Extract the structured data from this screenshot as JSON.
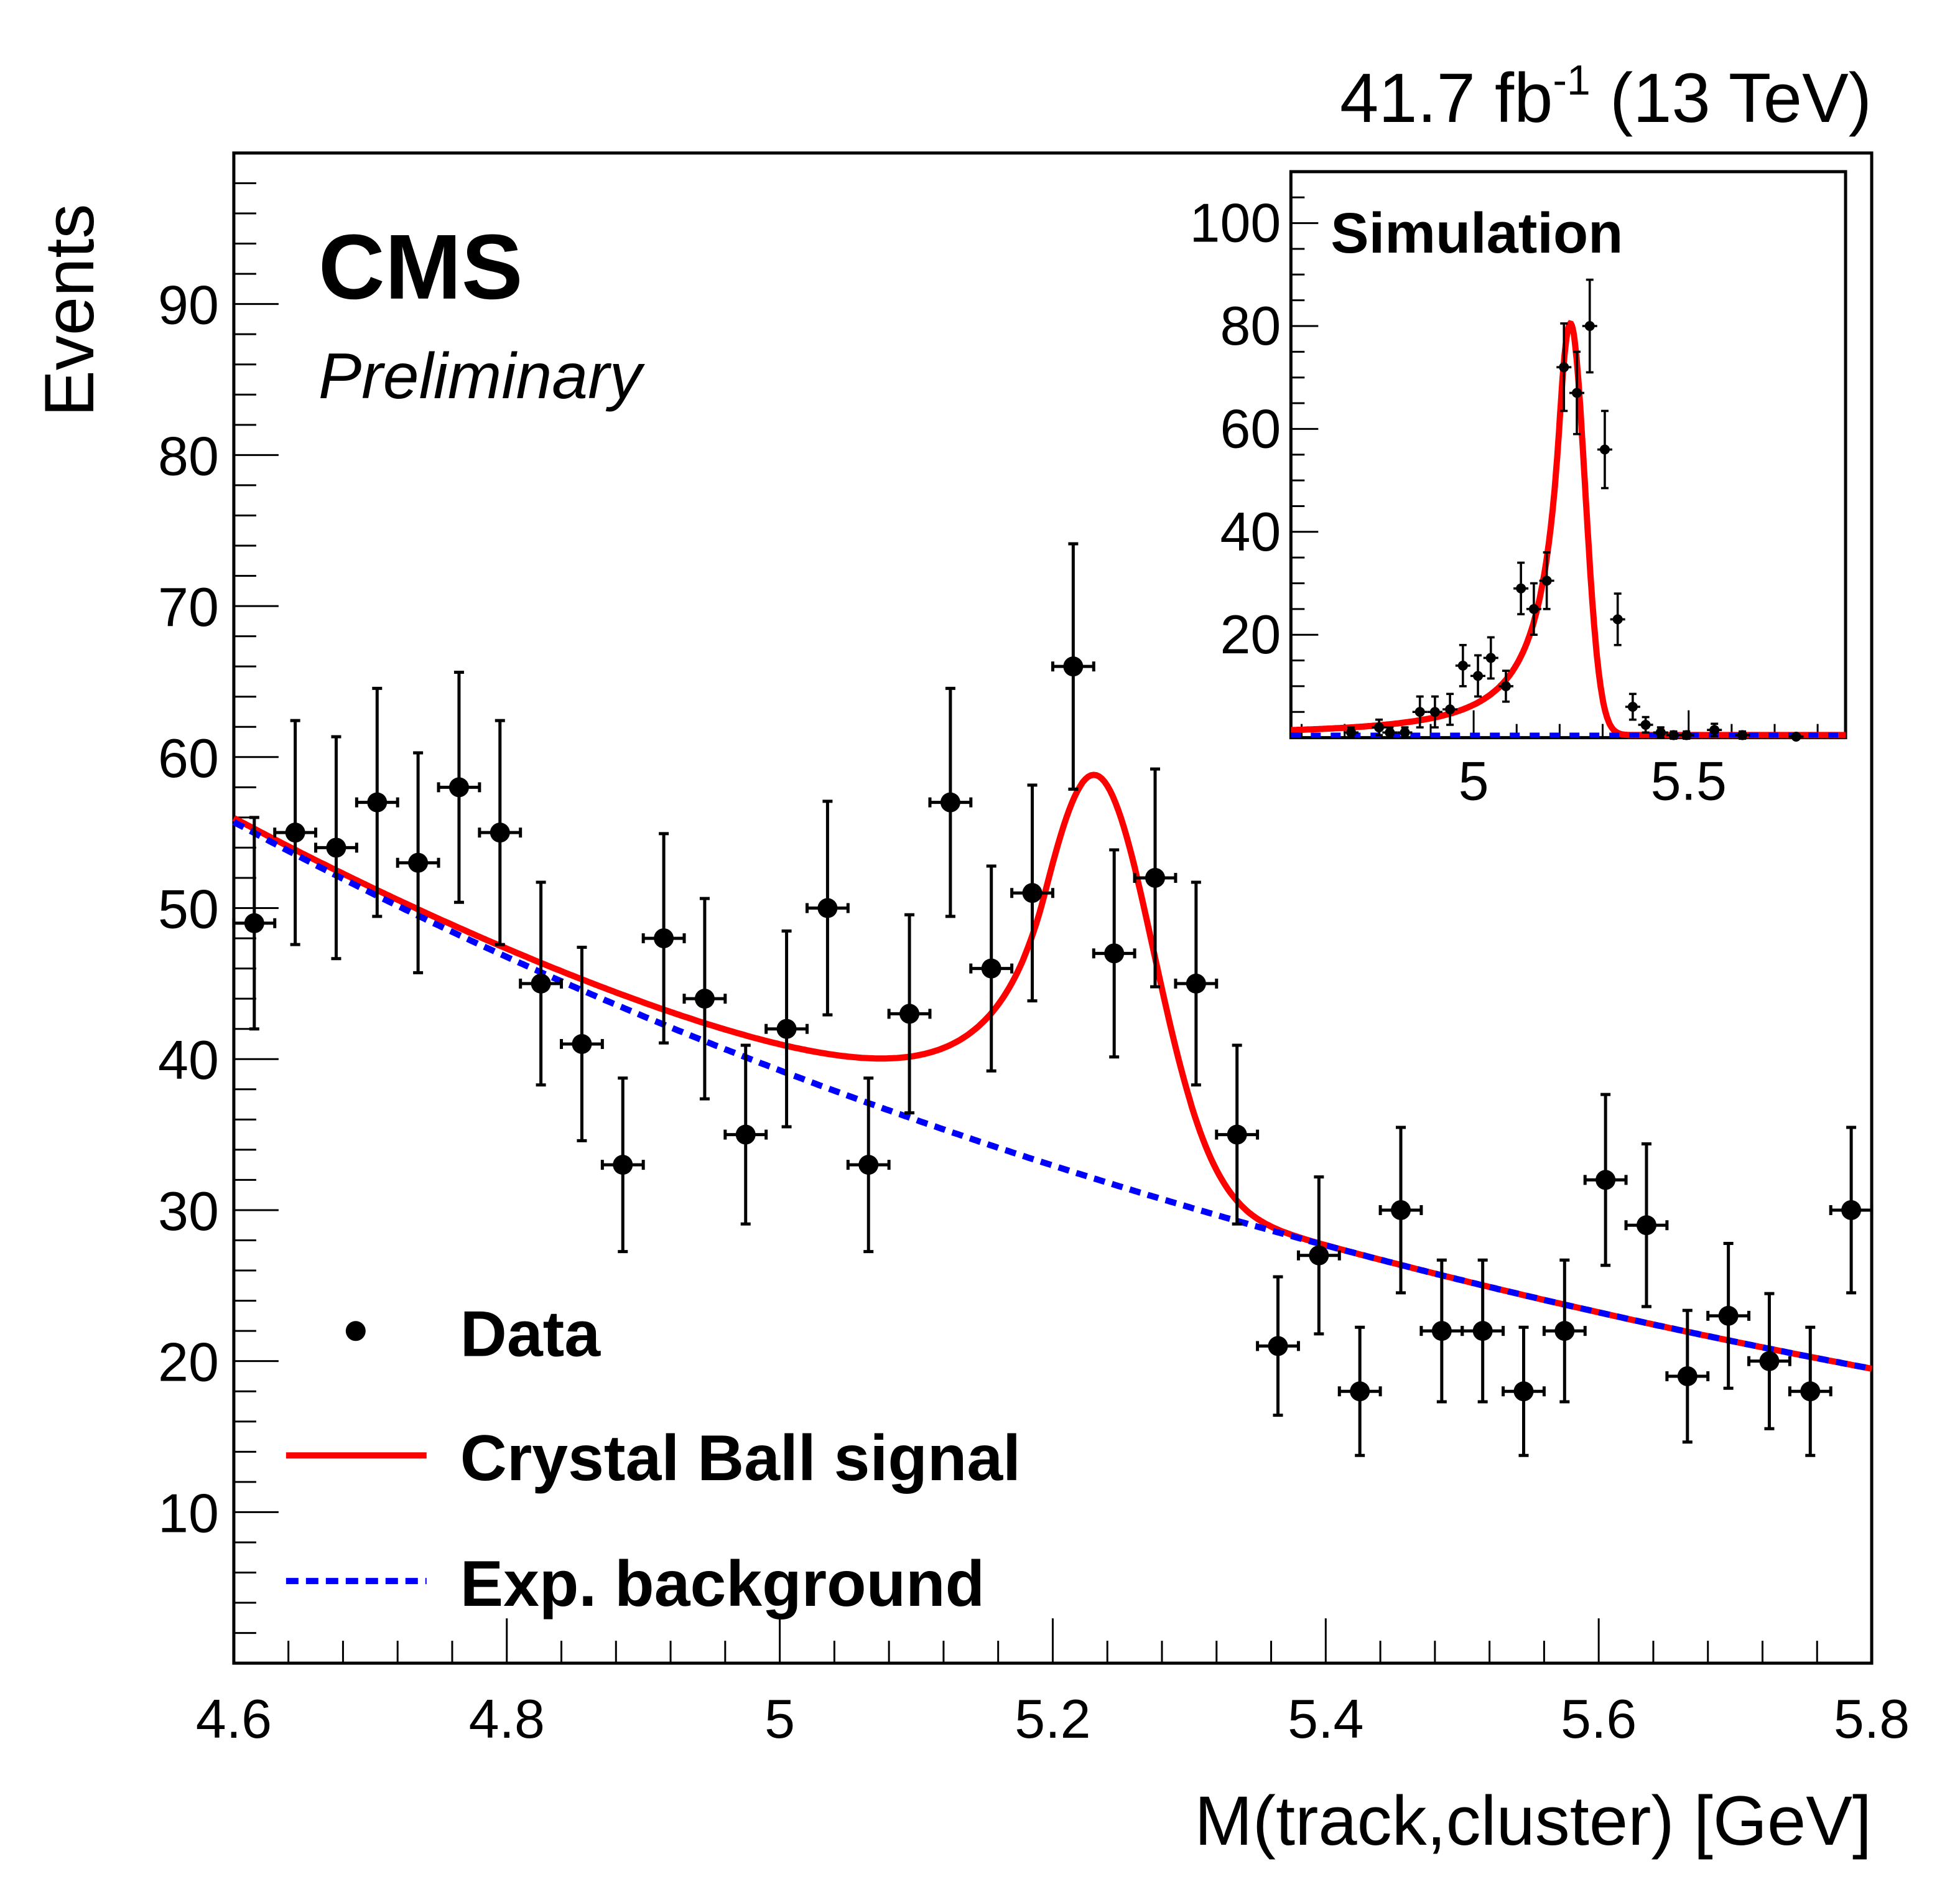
{
  "chart_data": [
    {
      "type": "scatter",
      "title": "",
      "header_right": "41.7 fb",
      "header_sup": "-1",
      "header_energy": " (13 TeV)",
      "experiment": "CMS",
      "status": "Preliminary",
      "xlabel": "M(track,cluster) [GeV]",
      "ylabel": "Events",
      "xlim": [
        4.6,
        5.8
      ],
      "ylim": [
        0,
        100
      ],
      "xticks": [
        4.6,
        4.8,
        5.0,
        5.2,
        5.4,
        5.6,
        5.8
      ],
      "xtick_labels": [
        "4.6",
        "4.8",
        "5",
        "5.2",
        "5.4",
        "5.6",
        "5.8"
      ],
      "yticks": [
        10,
        20,
        30,
        40,
        50,
        60,
        70,
        80,
        90
      ],
      "ytick_labels": [
        "10",
        "20",
        "30",
        "40",
        "50",
        "60",
        "70",
        "80",
        "90"
      ],
      "legend_position": "bottom-left",
      "legend": [
        {
          "label": "Data",
          "style": "marker",
          "color": "#000000"
        },
        {
          "label": "Crystal Ball signal",
          "style": "solid",
          "color": "#ff0000"
        },
        {
          "label": "Exp. background",
          "style": "dashed",
          "color": "#0000ff"
        }
      ],
      "bin_width": 0.03,
      "series": [
        {
          "name": "Data",
          "x": [
            4.615,
            4.645,
            4.675,
            4.705,
            4.735,
            4.765,
            4.795,
            4.825,
            4.855,
            4.885,
            4.915,
            4.945,
            4.975,
            5.005,
            5.035,
            5.065,
            5.095,
            5.125,
            5.155,
            5.185,
            5.215,
            5.245,
            5.275,
            5.305,
            5.335,
            5.365,
            5.395,
            5.425,
            5.455,
            5.485,
            5.515,
            5.545,
            5.575,
            5.605,
            5.635,
            5.665,
            5.695,
            5.725,
            5.755,
            5.785
          ],
          "y": [
            49,
            55,
            54,
            57,
            53,
            58,
            55,
            45,
            41,
            33,
            48,
            44,
            35,
            42,
            50,
            33,
            43,
            57,
            46,
            51,
            66,
            47,
            52,
            45,
            35,
            21,
            27,
            18,
            30,
            22,
            22,
            18,
            22,
            32,
            29,
            19,
            23,
            20,
            18,
            30
          ]
        },
        {
          "name": "Exp. background",
          "function": "exponential",
          "x": [
            4.6,
            5.8
          ],
          "y": [
            55.7,
            19.5
          ]
        },
        {
          "name": "Crystal Ball signal",
          "function": "crystal_ball_plus_exponential",
          "peak_x": 5.23,
          "peak_y": 58.8,
          "minimum_x": 5.0,
          "minimum_y": 42.8
        }
      ]
    },
    {
      "type": "scatter",
      "inset": true,
      "label": "Simulation",
      "xlim": [
        4.575,
        5.865
      ],
      "ylim": [
        0,
        110
      ],
      "xticks": [
        5.0,
        5.5
      ],
      "xtick_labels": [
        "5",
        "5.5"
      ],
      "yticks": [
        20,
        40,
        60,
        80,
        100
      ],
      "ytick_labels": [
        "20",
        "40",
        "60",
        "80",
        "100"
      ],
      "series": [
        {
          "name": "Simulation",
          "x": [
            4.715,
            4.78,
            4.805,
            4.84,
            4.875,
            4.91,
            4.945,
            4.975,
            5.01,
            5.04,
            5.075,
            5.11,
            5.14,
            5.17,
            5.21,
            5.24,
            5.27,
            5.305,
            5.335,
            5.37,
            5.4,
            5.435,
            5.465,
            5.495,
            5.56,
            5.625,
            5.75
          ],
          "y": [
            1,
            2,
            1,
            1,
            5,
            5,
            5.5,
            14,
            12,
            15.5,
            10,
            29,
            25,
            30.5,
            72,
            67,
            80,
            56,
            23,
            6,
            2.5,
            1,
            0.5,
            0.5,
            1.5,
            0.5,
            0.2
          ],
          "yerr": [
            1,
            1.5,
            1,
            1,
            3,
            3,
            3,
            4,
            4,
            4,
            3,
            5,
            5,
            5.5,
            8.5,
            8,
            9,
            7.5,
            5,
            2.5,
            1.5,
            1,
            0.7,
            0.7,
            1.2,
            0.7,
            0.4
          ]
        },
        {
          "name": "Crystal Ball signal",
          "peak_x": 5.225,
          "peak_y": 80.5
        },
        {
          "name": "Exp. background",
          "y_level": 0.5
        }
      ]
    }
  ]
}
